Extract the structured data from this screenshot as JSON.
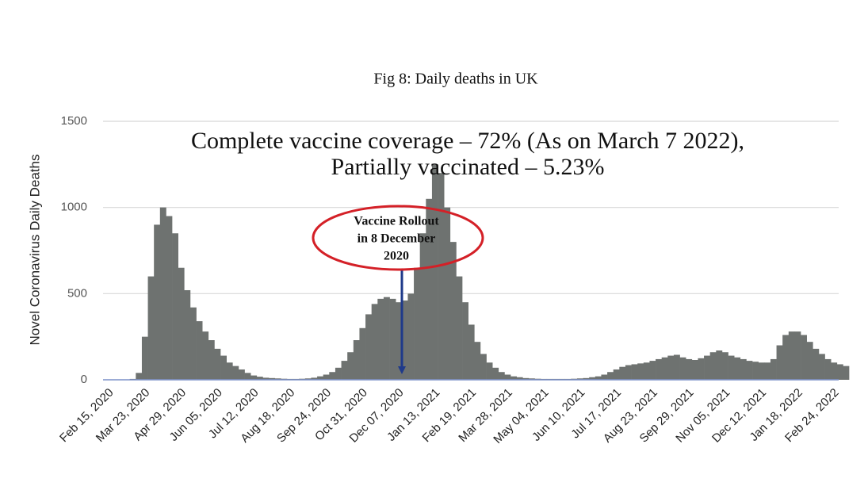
{
  "chart_data": {
    "type": "bar",
    "title": "Fig 8: Daily deaths in UK",
    "y_label": "Novel Coronavirus Daily Deaths",
    "coverage_note": [
      "Complete vaccine coverage – 72% (As on March 7 2022),",
      "Partially vaccinated – 5.23%"
    ],
    "rollout_note": [
      "Vaccine Rollout",
      "in 8 December",
      "2020"
    ],
    "color": "#6e7270",
    "ylim": [
      0,
      1500
    ],
    "yticks": [
      0,
      500,
      1000,
      1500
    ],
    "grid": true,
    "categories": [
      "Feb 15, 2020",
      null,
      null,
      null,
      null,
      null,
      "Mar 23, 2020",
      null,
      null,
      null,
      null,
      null,
      "Apr 29, 2020",
      null,
      null,
      null,
      null,
      null,
      "Jun 05, 2020",
      null,
      null,
      null,
      null,
      null,
      "Jul 12, 2020",
      null,
      null,
      null,
      null,
      null,
      "Aug 18, 2020",
      null,
      null,
      null,
      null,
      null,
      "Sep 24, 2020",
      null,
      null,
      null,
      null,
      null,
      "Oct 31, 2020",
      null,
      null,
      null,
      null,
      null,
      "Dec 07, 2020",
      null,
      null,
      null,
      null,
      null,
      "Jan 13, 2021",
      null,
      null,
      null,
      null,
      null,
      "Feb 19, 2021",
      null,
      null,
      null,
      null,
      null,
      "Mar 28, 2021",
      null,
      null,
      null,
      null,
      null,
      "May 04, 2021",
      null,
      null,
      null,
      null,
      null,
      "Jun 10, 2021",
      null,
      null,
      null,
      null,
      null,
      "Jul 17, 2021",
      null,
      null,
      null,
      null,
      null,
      "Aug 23, 2021",
      null,
      null,
      null,
      null,
      null,
      "Sep 29, 2021",
      null,
      null,
      null,
      null,
      null,
      "Nov 05, 2021",
      null,
      null,
      null,
      null,
      null,
      "Dec 12, 2021",
      null,
      null,
      null,
      null,
      null,
      "Jan 18, 2022",
      null,
      null,
      null,
      null,
      null,
      "Feb 24, 2022",
      null,
      null
    ],
    "values": [
      0,
      0,
      0,
      0,
      5,
      40,
      250,
      600,
      900,
      1000,
      950,
      850,
      650,
      520,
      420,
      340,
      280,
      230,
      180,
      140,
      100,
      80,
      60,
      40,
      25,
      18,
      12,
      10,
      8,
      6,
      5,
      5,
      6,
      8,
      12,
      20,
      30,
      45,
      70,
      110,
      160,
      230,
      300,
      380,
      440,
      470,
      480,
      470,
      450,
      460,
      500,
      650,
      850,
      1050,
      1250,
      1200,
      1000,
      800,
      600,
      450,
      320,
      220,
      150,
      100,
      70,
      45,
      30,
      20,
      15,
      10,
      8,
      6,
      5,
      5,
      5,
      5,
      5,
      6,
      8,
      10,
      15,
      20,
      30,
      45,
      60,
      75,
      85,
      90,
      95,
      100,
      110,
      120,
      130,
      140,
      145,
      130,
      120,
      115,
      125,
      140,
      160,
      170,
      160,
      140,
      130,
      120,
      110,
      105,
      100,
      100,
      120,
      200,
      260,
      280,
      280,
      260,
      220,
      180,
      150,
      120,
      100,
      90,
      80
    ]
  }
}
